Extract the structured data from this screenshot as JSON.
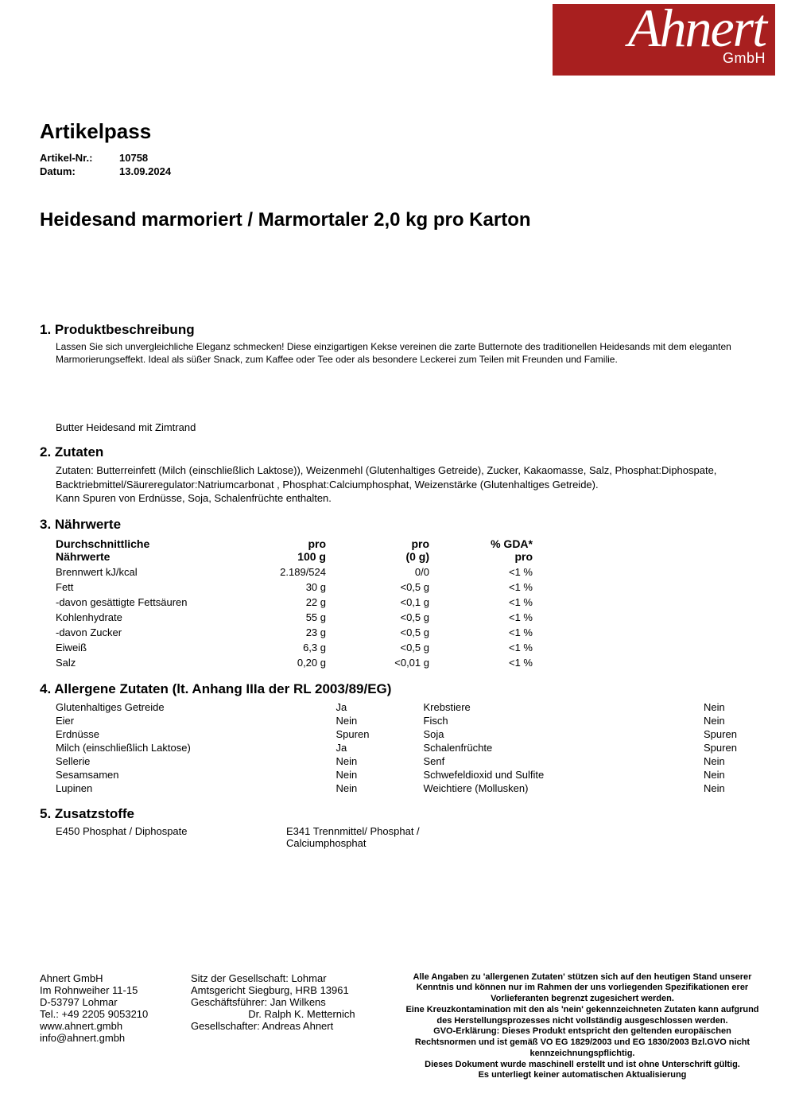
{
  "logo": {
    "main": "Ahnert",
    "sub": "GmbH"
  },
  "doc": {
    "title": "Artikelpass",
    "meta": [
      {
        "label": "Artikel-Nr.:",
        "value": "10758"
      },
      {
        "label": "Datum:",
        "value": "13.09.2024"
      }
    ],
    "product_title": "Heidesand marmoriert / Marmortaler 2,0 kg pro Karton"
  },
  "sections": {
    "s1": {
      "h": "1. Produktbeschreibung",
      "desc": "Lassen Sie sich unvergleichliche Eleganz schmecken! Diese einzigartigen Kekse vereinen die zarte Butternote des traditionellen Heidesands mit dem eleganten Marmorierungseffekt. Ideal als süßer Snack, zum Kaffee oder Tee oder als besondere Leckerei zum Teilen mit Freunden und Familie.",
      "subname": "Butter Heidesand mit Zimtrand"
    },
    "s2": {
      "h": "2. Zutaten",
      "text": "Zutaten: Butterreinfett (Milch (einschließlich Laktose)), Weizenmehl (Glutenhaltiges Getreide), Zucker, Kakaomasse, Salz, Phosphat:Diphospate, Backtriebmittel/Säureregulator:Natriumcarbonat , Phosphat:Calciumphosphat, Weizenstärke (Glutenhaltiges Getreide).",
      "traces": "Kann Spuren von Erdnüsse, Soja, Schalenfrüchte enthalten."
    },
    "s3": {
      "h": "3. Nährwerte",
      "header": {
        "c1a": "Durchschnittliche",
        "c1b": "Nährwerte",
        "c2a": "pro",
        "c2b": "100 g",
        "c3a": "pro",
        "c3b": "(0 g)",
        "c4a": "% GDA*",
        "c4b": "pro"
      },
      "rows": [
        {
          "n": "Brennwert kJ/kcal",
          "a": "2.189/524",
          "b": "0/0",
          "c": "<1 %"
        },
        {
          "n": "Fett",
          "a": "30 g",
          "b": "<0,5 g",
          "c": "<1 %"
        },
        {
          "n": "-davon gesättigte Fettsäuren",
          "a": "22 g",
          "b": "<0,1 g",
          "c": "<1 %"
        },
        {
          "n": "Kohlenhydrate",
          "a": "55 g",
          "b": "<0,5 g",
          "c": "<1 %"
        },
        {
          "n": "-davon Zucker",
          "a": "23 g",
          "b": "<0,5 g",
          "c": "<1 %"
        },
        {
          "n": "Eiweiß",
          "a": "6,3 g",
          "b": "<0,5 g",
          "c": "<1 %"
        },
        {
          "n": "Salz",
          "a": "0,20 g",
          "b": "<0,01 g",
          "c": "<1 %"
        }
      ]
    },
    "s4": {
      "h": "4. Allergene Zutaten (lt. Anhang IIIa der RL 2003/89/EG)",
      "left": [
        {
          "n": "Glutenhaltiges Getreide",
          "v": "Ja"
        },
        {
          "n": "Eier",
          "v": "Nein"
        },
        {
          "n": "Erdnüsse",
          "v": "Spuren"
        },
        {
          "n": "Milch (einschließlich Laktose)",
          "v": "Ja"
        },
        {
          "n": "Sellerie",
          "v": "Nein"
        },
        {
          "n": "Sesamsamen",
          "v": "Nein"
        },
        {
          "n": "Lupinen",
          "v": "Nein"
        }
      ],
      "right": [
        {
          "n": "Krebstiere",
          "v": "Nein"
        },
        {
          "n": "Fisch",
          "v": "Nein"
        },
        {
          "n": "Soja",
          "v": "Spuren"
        },
        {
          "n": "Schalenfrüchte",
          "v": "Spuren"
        },
        {
          "n": "Senf",
          "v": "Nein"
        },
        {
          "n": "Schwefeldioxid und Sulfite",
          "v": "Nein"
        },
        {
          "n": "Weichtiere (Mollusken)",
          "v": "Nein"
        }
      ]
    },
    "s5": {
      "h": "5. Zusatzstoffe",
      "items": [
        "E450 Phosphat / Diphospate",
        "E341 Trennmittel/ Phosphat / Calciumphosphat"
      ]
    }
  },
  "footer": {
    "colA": [
      "Ahnert GmbH",
      "Im Rohnweiher 11-15",
      "D-53797 Lohmar",
      "Tel.: +49 2205 9053210",
      "www.ahnert.gmbh",
      "info@ahnert.gmbh"
    ],
    "colB": [
      "Sitz der Gesellschaft: Lohmar",
      "Amtsgericht Siegburg, HRB 13961",
      "Geschäftsführer: Jan Wilkens",
      "                    Dr. Ralph K. Metternich",
      "Gesellschafter: Andreas Ahnert"
    ],
    "colC": [
      "Alle Angaben zu 'allergenen Zutaten' stützen sich auf den heutigen Stand unserer Kenntnis und können nur im Rahmen der uns vorliegenden Spezifikationen erer Vorlieferanten begrenzt zugesichert werden.",
      "Eine Kreuzkontamination mit den als 'nein' gekennzeichneten Zutaten kann aufgrund des Herstellungsprozesses nicht vollständig ausgeschlossen werden.",
      "GVO-Erklärung: Dieses Produkt entspricht den geltenden europäischen Rechtsnormen und ist gemäß VO EG 1829/2003 und EG 1830/2003 Bzl.GVO nicht kennzeichnungspflichtig.",
      "Dieses Dokument wurde maschinell erstellt und ist ohne Unterschrift gültig.",
      "Es unterliegt keiner automatischen Aktualisierung"
    ]
  }
}
